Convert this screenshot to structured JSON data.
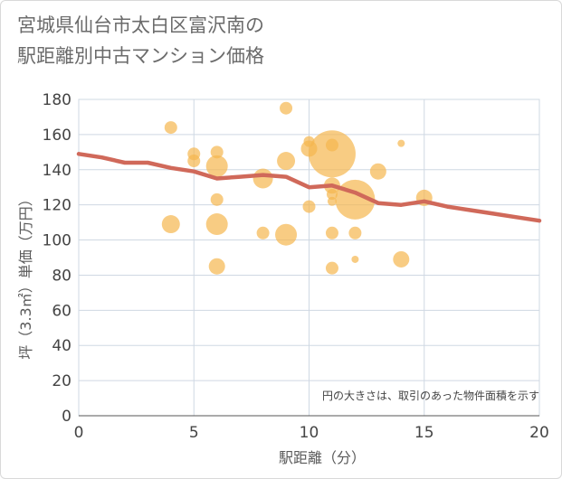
{
  "title_lines": [
    "宮城県仙台市太白区富沢南の",
    "駅距離別中古マンション価格"
  ],
  "chart_data": {
    "type": "scatter",
    "xlabel": "駅距離（分）",
    "ylabel": "坪（3.3㎡）単価（万円）",
    "xlim": [
      0,
      20
    ],
    "ylim": [
      0,
      180
    ],
    "x_ticks": [
      0,
      5,
      10,
      15,
      20
    ],
    "y_ticks": [
      0,
      20,
      40,
      60,
      80,
      100,
      120,
      140,
      160,
      180
    ],
    "note": "円の大きさは、取引のあった物件面積を示す",
    "bubble_color": "#f5b74e",
    "line_color": "#d0695a",
    "bubbles": [
      {
        "x": 4,
        "y": 164,
        "s": 7
      },
      {
        "x": 4,
        "y": 109,
        "s": 10
      },
      {
        "x": 5,
        "y": 149,
        "s": 7
      },
      {
        "x": 5,
        "y": 145,
        "s": 7
      },
      {
        "x": 6,
        "y": 150,
        "s": 7
      },
      {
        "x": 6,
        "y": 142,
        "s": 12
      },
      {
        "x": 6,
        "y": 123,
        "s": 7
      },
      {
        "x": 6,
        "y": 109,
        "s": 12
      },
      {
        "x": 6,
        "y": 85,
        "s": 9
      },
      {
        "x": 8,
        "y": 135,
        "s": 11
      },
      {
        "x": 8,
        "y": 104,
        "s": 7
      },
      {
        "x": 9,
        "y": 175,
        "s": 7
      },
      {
        "x": 9,
        "y": 145,
        "s": 10
      },
      {
        "x": 9,
        "y": 103,
        "s": 12
      },
      {
        "x": 10,
        "y": 156,
        "s": 6
      },
      {
        "x": 10,
        "y": 152,
        "s": 9
      },
      {
        "x": 10,
        "y": 119,
        "s": 7
      },
      {
        "x": 11,
        "y": 154,
        "s": 7
      },
      {
        "x": 11,
        "y": 149,
        "s": 26
      },
      {
        "x": 11,
        "y": 131,
        "s": 9
      },
      {
        "x": 11,
        "y": 126,
        "s": 6
      },
      {
        "x": 11,
        "y": 122,
        "s": 5
      },
      {
        "x": 11,
        "y": 104,
        "s": 7
      },
      {
        "x": 11,
        "y": 84,
        "s": 7
      },
      {
        "x": 12,
        "y": 123,
        "s": 22
      },
      {
        "x": 12,
        "y": 104,
        "s": 7
      },
      {
        "x": 12,
        "y": 89,
        "s": 4
      },
      {
        "x": 13,
        "y": 139,
        "s": 9
      },
      {
        "x": 14,
        "y": 155,
        "s": 4
      },
      {
        "x": 14,
        "y": 89,
        "s": 9
      },
      {
        "x": 15,
        "y": 124,
        "s": 9
      }
    ],
    "trend": {
      "x": [
        0,
        1,
        2,
        3,
        4,
        5,
        6,
        7,
        8,
        9,
        10,
        11,
        12,
        13,
        14,
        15,
        16,
        17,
        18,
        19,
        20
      ],
      "y": [
        149,
        147,
        144,
        144,
        141,
        139,
        135,
        136,
        137,
        136,
        130,
        131,
        127,
        121,
        120,
        122,
        119,
        117,
        115,
        113,
        111
      ]
    }
  }
}
